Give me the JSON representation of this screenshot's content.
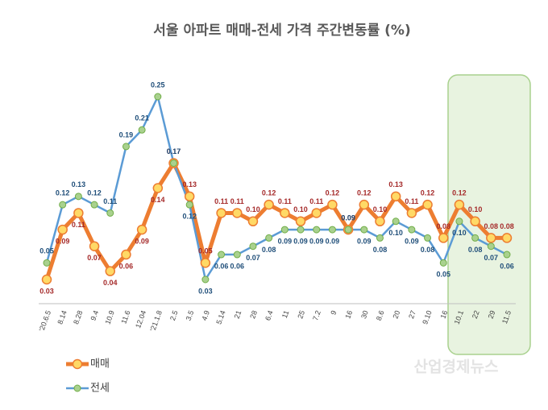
{
  "chart_data": {
    "type": "line",
    "title": "서울 아파트 매매-전세 가격 주간변동률 (%)",
    "watermark": "산업경제뉴스",
    "categories": [
      "'20.6.5",
      "8.14",
      "8.28",
      "9.4",
      "10.9",
      "11.6",
      "12.04",
      "'21.1.8",
      "2.5",
      "3.5",
      "4.9",
      "5.14",
      "21",
      "28",
      "6.4",
      "11",
      "25",
      "7.2",
      "9",
      "16",
      "30",
      "8.6",
      "20",
      "27",
      "9.10",
      "16",
      "10.1",
      "22",
      "29",
      "11.5"
    ],
    "series": [
      {
        "name": "매매",
        "color": "#ed7d31",
        "label_color": "#a52a2a",
        "values": [
          0.03,
          0.09,
          0.11,
          0.07,
          0.04,
          0.06,
          0.09,
          0.14,
          0.17,
          0.13,
          0.05,
          0.11,
          0.11,
          0.1,
          0.12,
          0.11,
          0.1,
          0.11,
          0.12,
          0.09,
          0.12,
          0.1,
          0.13,
          0.11,
          0.12,
          0.08,
          0.12,
          0.1,
          0.08,
          0.08
        ],
        "value_labels": [
          "0.03",
          "0.09",
          "0.11",
          "0.07",
          "0.04",
          "0.06",
          "0.09",
          "0.14",
          "0.17",
          "0.13",
          "0.05",
          "0.11",
          "0.11",
          "0.10",
          "0.12",
          "0.11",
          "0.10",
          "0.11",
          "0.12",
          "0.09",
          "0.12",
          "0.10",
          "0.13",
          "0.11",
          "0.12",
          "0.08",
          "0.12",
          "0.10",
          "0.08",
          "0.08"
        ]
      },
      {
        "name": "전세",
        "color": "#5b9bd5",
        "label_color": "#1f4e79",
        "values": [
          0.05,
          0.12,
          0.13,
          0.12,
          0.11,
          0.19,
          0.21,
          0.25,
          0.17,
          0.12,
          0.03,
          0.06,
          0.06,
          0.07,
          0.08,
          0.09,
          0.09,
          0.09,
          0.09,
          0.09,
          0.09,
          0.08,
          0.1,
          0.09,
          0.08,
          0.05,
          0.1,
          0.08,
          0.07,
          0.06
        ],
        "value_labels": [
          "0.05",
          "0.12",
          "0.13",
          "0.12",
          "0.11",
          "0.19",
          "0.21",
          "0.25",
          "0.17",
          "0.12",
          "0.03",
          "0.06",
          "0.06",
          "0.07",
          "0.08",
          "0.09",
          "0.09",
          "0.09",
          "0.09",
          "0.09",
          "0.09",
          "0.08",
          "0.10",
          "0.09",
          "0.08",
          "0.05",
          "0.10",
          "0.08",
          "0.07",
          "0.06"
        ]
      }
    ]
  }
}
